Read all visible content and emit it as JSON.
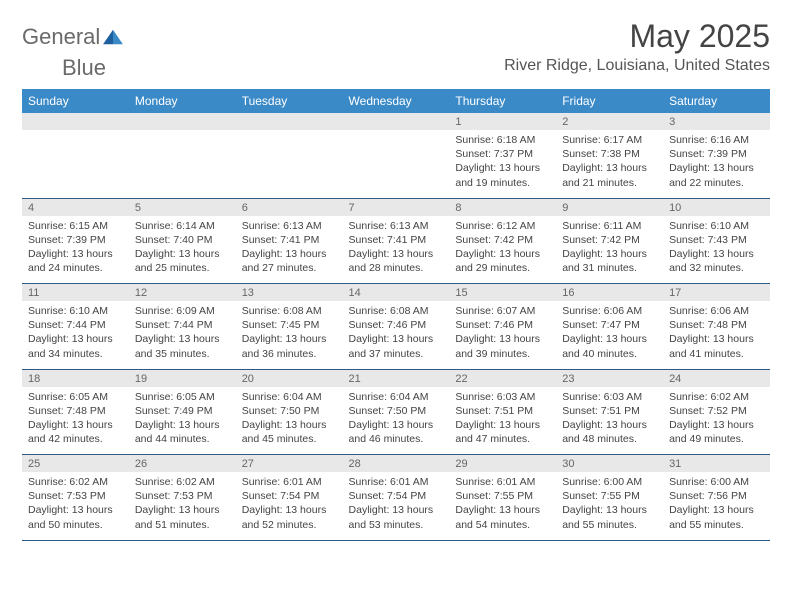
{
  "logo": {
    "text_a": "General",
    "text_b": "Blue",
    "icon_color": "#1e5fa0"
  },
  "title": "May 2025",
  "location": "River Ridge, Louisiana, United States",
  "colors": {
    "header_bg": "#3a8ac8",
    "daynum_bg": "#e8e8e8",
    "border": "#2f5a88"
  },
  "weekdays": [
    "Sunday",
    "Monday",
    "Tuesday",
    "Wednesday",
    "Thursday",
    "Friday",
    "Saturday"
  ],
  "weeks": [
    [
      null,
      null,
      null,
      null,
      {
        "n": "1",
        "sr": "6:18 AM",
        "ss": "7:37 PM",
        "dl": "13 hours and 19 minutes."
      },
      {
        "n": "2",
        "sr": "6:17 AM",
        "ss": "7:38 PM",
        "dl": "13 hours and 21 minutes."
      },
      {
        "n": "3",
        "sr": "6:16 AM",
        "ss": "7:39 PM",
        "dl": "13 hours and 22 minutes."
      }
    ],
    [
      {
        "n": "4",
        "sr": "6:15 AM",
        "ss": "7:39 PM",
        "dl": "13 hours and 24 minutes."
      },
      {
        "n": "5",
        "sr": "6:14 AM",
        "ss": "7:40 PM",
        "dl": "13 hours and 25 minutes."
      },
      {
        "n": "6",
        "sr": "6:13 AM",
        "ss": "7:41 PM",
        "dl": "13 hours and 27 minutes."
      },
      {
        "n": "7",
        "sr": "6:13 AM",
        "ss": "7:41 PM",
        "dl": "13 hours and 28 minutes."
      },
      {
        "n": "8",
        "sr": "6:12 AM",
        "ss": "7:42 PM",
        "dl": "13 hours and 29 minutes."
      },
      {
        "n": "9",
        "sr": "6:11 AM",
        "ss": "7:42 PM",
        "dl": "13 hours and 31 minutes."
      },
      {
        "n": "10",
        "sr": "6:10 AM",
        "ss": "7:43 PM",
        "dl": "13 hours and 32 minutes."
      }
    ],
    [
      {
        "n": "11",
        "sr": "6:10 AM",
        "ss": "7:44 PM",
        "dl": "13 hours and 34 minutes."
      },
      {
        "n": "12",
        "sr": "6:09 AM",
        "ss": "7:44 PM",
        "dl": "13 hours and 35 minutes."
      },
      {
        "n": "13",
        "sr": "6:08 AM",
        "ss": "7:45 PM",
        "dl": "13 hours and 36 minutes."
      },
      {
        "n": "14",
        "sr": "6:08 AM",
        "ss": "7:46 PM",
        "dl": "13 hours and 37 minutes."
      },
      {
        "n": "15",
        "sr": "6:07 AM",
        "ss": "7:46 PM",
        "dl": "13 hours and 39 minutes."
      },
      {
        "n": "16",
        "sr": "6:06 AM",
        "ss": "7:47 PM",
        "dl": "13 hours and 40 minutes."
      },
      {
        "n": "17",
        "sr": "6:06 AM",
        "ss": "7:48 PM",
        "dl": "13 hours and 41 minutes."
      }
    ],
    [
      {
        "n": "18",
        "sr": "6:05 AM",
        "ss": "7:48 PM",
        "dl": "13 hours and 42 minutes."
      },
      {
        "n": "19",
        "sr": "6:05 AM",
        "ss": "7:49 PM",
        "dl": "13 hours and 44 minutes."
      },
      {
        "n": "20",
        "sr": "6:04 AM",
        "ss": "7:50 PM",
        "dl": "13 hours and 45 minutes."
      },
      {
        "n": "21",
        "sr": "6:04 AM",
        "ss": "7:50 PM",
        "dl": "13 hours and 46 minutes."
      },
      {
        "n": "22",
        "sr": "6:03 AM",
        "ss": "7:51 PM",
        "dl": "13 hours and 47 minutes."
      },
      {
        "n": "23",
        "sr": "6:03 AM",
        "ss": "7:51 PM",
        "dl": "13 hours and 48 minutes."
      },
      {
        "n": "24",
        "sr": "6:02 AM",
        "ss": "7:52 PM",
        "dl": "13 hours and 49 minutes."
      }
    ],
    [
      {
        "n": "25",
        "sr": "6:02 AM",
        "ss": "7:53 PM",
        "dl": "13 hours and 50 minutes."
      },
      {
        "n": "26",
        "sr": "6:02 AM",
        "ss": "7:53 PM",
        "dl": "13 hours and 51 minutes."
      },
      {
        "n": "27",
        "sr": "6:01 AM",
        "ss": "7:54 PM",
        "dl": "13 hours and 52 minutes."
      },
      {
        "n": "28",
        "sr": "6:01 AM",
        "ss": "7:54 PM",
        "dl": "13 hours and 53 minutes."
      },
      {
        "n": "29",
        "sr": "6:01 AM",
        "ss": "7:55 PM",
        "dl": "13 hours and 54 minutes."
      },
      {
        "n": "30",
        "sr": "6:00 AM",
        "ss": "7:55 PM",
        "dl": "13 hours and 55 minutes."
      },
      {
        "n": "31",
        "sr": "6:00 AM",
        "ss": "7:56 PM",
        "dl": "13 hours and 55 minutes."
      }
    ]
  ],
  "labels": {
    "sunrise": "Sunrise:",
    "sunset": "Sunset:",
    "daylight": "Daylight:"
  }
}
